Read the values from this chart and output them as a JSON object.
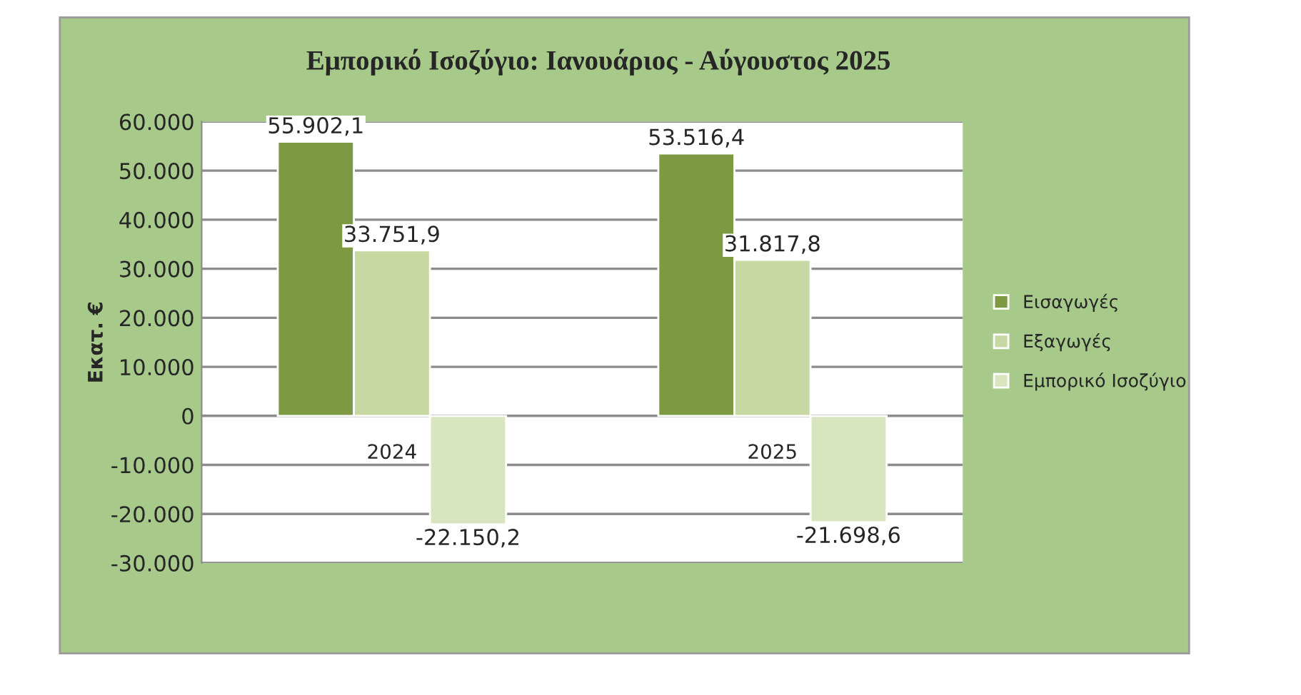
{
  "chart_data": {
    "type": "bar",
    "title": "Εμπορικό Ισοζύγιο: Ιανουάριος - Αύγουστος 2025",
    "ylabel": "Εκατ. €",
    "categories": [
      "2024",
      "2025"
    ],
    "series": [
      {
        "name": "Εισαγωγές",
        "color": "#7d9a42",
        "values": [
          55902.1,
          53516.4
        ],
        "value_labels": [
          "55.902,1",
          "53.516,4"
        ]
      },
      {
        "name": "Εξαγωγές",
        "color": "#c7d8a2",
        "values": [
          33751.9,
          31817.8
        ],
        "value_labels": [
          "33.751,9",
          "31.817,8"
        ]
      },
      {
        "name": "Εμπορικό Ισοζύγιο",
        "color": "#d9e5bf",
        "values": [
          -22150.2,
          -21698.6
        ],
        "value_labels": [
          "-22.150,2",
          "-21.698,6"
        ]
      }
    ],
    "ylim": [
      -30000,
      60000
    ],
    "yticks": [
      {
        "value": -30000,
        "label": "-30.000"
      },
      {
        "value": -20000,
        "label": "-20.000"
      },
      {
        "value": -10000,
        "label": "-10.000"
      },
      0,
      {
        "value": 10000,
        "label": "10.000"
      },
      {
        "value": 20000,
        "label": "20.000"
      },
      {
        "value": 30000,
        "label": "30.000"
      },
      {
        "value": 40000,
        "label": "40.000"
      },
      {
        "value": 50000,
        "label": "50.000"
      },
      {
        "value": 60000,
        "label": "60.000"
      }
    ],
    "grid": "y",
    "legend": "right"
  }
}
